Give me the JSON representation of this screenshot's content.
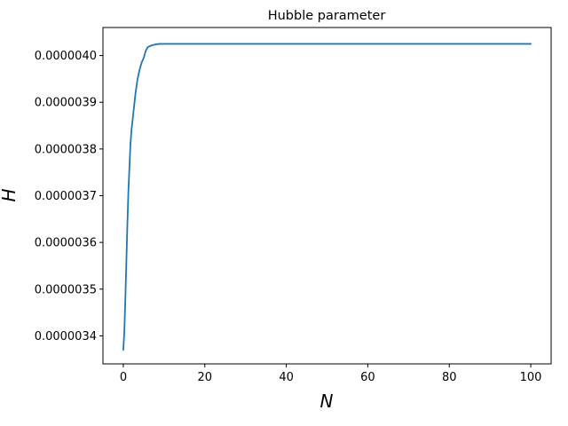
{
  "chart_data": {
    "type": "line",
    "title": "Hubble parameter",
    "xlabel": "N",
    "ylabel": "H",
    "xlim": [
      -5,
      105
    ],
    "ylim": [
      3.34e-06,
      4.06e-06
    ],
    "xticks": [
      0,
      20,
      40,
      60,
      80,
      100
    ],
    "xtick_labels": [
      "0",
      "20",
      "40",
      "60",
      "80",
      "100"
    ],
    "yticks": [
      3.4e-06,
      3.5e-06,
      3.6e-06,
      3.7e-06,
      3.8e-06,
      3.9e-06,
      4e-06
    ],
    "ytick_labels": [
      "0.0000034",
      "0.0000035",
      "0.0000036",
      "0.0000037",
      "0.0000038",
      "0.0000039",
      "0.0000040"
    ],
    "grid": false,
    "series": [
      {
        "name": "H",
        "color": "#1f77b4",
        "x": [
          0,
          0.25,
          0.5,
          0.75,
          1,
          1.25,
          1.5,
          1.75,
          2,
          2.5,
          3,
          3.5,
          4,
          4.5,
          5,
          5.5,
          6,
          7,
          8,
          9,
          10,
          12,
          15,
          20,
          30,
          40,
          50,
          60,
          70,
          80,
          90,
          100
        ],
        "y": [
          3.37e-06,
          3.41e-06,
          3.48e-06,
          3.56e-06,
          3.64e-06,
          3.71e-06,
          3.76e-06,
          3.81e-06,
          3.84e-06,
          3.88e-06,
          3.92e-06,
          3.95e-06,
          3.97e-06,
          3.985e-06,
          3.995e-06,
          4.01e-06,
          4.018e-06,
          4.022e-06,
          4.024e-06,
          4.025e-06,
          4.025e-06,
          4.025e-06,
          4.025e-06,
          4.025e-06,
          4.025e-06,
          4.025e-06,
          4.025e-06,
          4.025e-06,
          4.025e-06,
          4.025e-06,
          4.025e-06,
          4.025e-06
        ]
      }
    ]
  }
}
